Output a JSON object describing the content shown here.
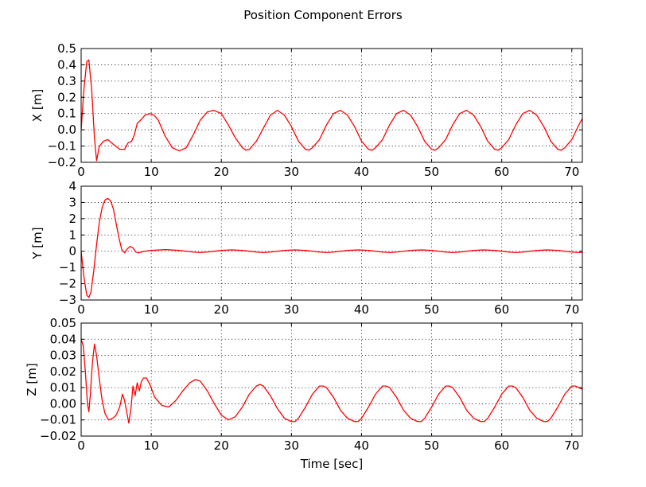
{
  "figure": {
    "title": "Position Component Errors",
    "line_color": "#ff0000",
    "background": "#ffffff"
  },
  "chart_data": [
    {
      "type": "line",
      "id": "x",
      "title": "",
      "xlabel": "",
      "ylabel": "X [m]",
      "xlim": [
        0,
        71.5
      ],
      "ylim": [
        -0.2,
        0.5
      ],
      "xticks": [
        0,
        10,
        20,
        30,
        40,
        50,
        60,
        70
      ],
      "xtick_labels": [
        "0",
        "10",
        "20",
        "30",
        "40",
        "50",
        "60",
        "70"
      ],
      "yticks": [
        -0.2,
        -0.1,
        0.0,
        0.1,
        0.2,
        0.3,
        0.4,
        0.5
      ],
      "ytick_labels": [
        "−0.2",
        "−0.1",
        "0.0",
        "0.1",
        "0.2",
        "0.3",
        "0.4",
        "0.5"
      ],
      "grid": true,
      "series": [
        {
          "color": "#ff0000",
          "x": [
            0,
            0.4,
            0.8,
            1.1,
            1.5,
            1.9,
            2.2,
            2.6,
            3.2,
            3.8,
            4.6,
            5.5,
            6.2,
            6.7,
            7.2,
            7.6,
            8.0,
            8.5,
            9.1,
            9.8,
            10.4,
            11.0,
            12.0,
            13.0,
            14.0,
            15.0,
            16.0,
            17.0,
            18.0,
            18.9,
            20.0,
            21.0,
            22.0,
            23.0,
            23.5,
            24.0,
            25.0,
            26.0,
            27.0,
            28.0,
            29.0,
            30.0,
            31.0,
            32.0,
            32.5,
            33.0,
            34.0,
            35.0,
            36.0,
            37.0,
            38.0,
            39.0,
            40.0,
            41.0,
            41.5,
            42.0,
            43.0,
            44.0,
            45.0,
            46.0,
            47.0,
            48.0,
            49.0,
            50.0,
            50.5,
            51.0,
            52.0,
            53.0,
            54.0,
            55.0,
            56.0,
            57.0,
            58.0,
            59.0,
            59.5,
            60.0,
            61.0,
            62.0,
            63.0,
            64.0,
            65.0,
            66.0,
            67.0,
            68.0,
            68.5,
            69.0,
            70.0,
            71.0,
            71.5
          ],
          "values": [
            0.0,
            0.25,
            0.42,
            0.43,
            0.25,
            -0.05,
            -0.19,
            -0.1,
            -0.07,
            -0.06,
            -0.09,
            -0.12,
            -0.12,
            -0.08,
            -0.07,
            -0.03,
            0.04,
            0.06,
            0.09,
            0.1,
            0.09,
            0.06,
            -0.04,
            -0.11,
            -0.13,
            -0.11,
            -0.03,
            0.06,
            0.11,
            0.12,
            0.1,
            0.03,
            -0.05,
            -0.11,
            -0.125,
            -0.12,
            -0.07,
            0.01,
            0.09,
            0.12,
            0.09,
            0.02,
            -0.07,
            -0.12,
            -0.125,
            -0.11,
            -0.06,
            0.03,
            0.1,
            0.12,
            0.09,
            0.02,
            -0.07,
            -0.12,
            -0.125,
            -0.11,
            -0.06,
            0.03,
            0.1,
            0.12,
            0.09,
            0.02,
            -0.07,
            -0.12,
            -0.125,
            -0.11,
            -0.06,
            0.03,
            0.1,
            0.12,
            0.09,
            0.02,
            -0.07,
            -0.12,
            -0.125,
            -0.11,
            -0.06,
            0.03,
            0.1,
            0.12,
            0.09,
            0.02,
            -0.07,
            -0.12,
            -0.125,
            -0.11,
            -0.06,
            0.03,
            0.07
          ]
        }
      ]
    },
    {
      "type": "line",
      "id": "y",
      "title": "",
      "xlabel": "",
      "ylabel": "Y [m]",
      "xlim": [
        0,
        71.5
      ],
      "ylim": [
        -3,
        4
      ],
      "xticks": [
        0,
        10,
        20,
        30,
        40,
        50,
        60,
        70
      ],
      "xtick_labels": [
        "0",
        "10",
        "20",
        "30",
        "40",
        "50",
        "60",
        "70"
      ],
      "yticks": [
        -3,
        -2,
        -1,
        0,
        1,
        2,
        3,
        4
      ],
      "ytick_labels": [
        "−3",
        "−2",
        "−1",
        "0",
        "1",
        "2",
        "3",
        "4"
      ],
      "grid": true,
      "series": [
        {
          "color": "#ff0000",
          "x": [
            0,
            0.4,
            0.8,
            1.1,
            1.4,
            1.8,
            2.2,
            2.6,
            3.0,
            3.4,
            3.8,
            4.2,
            4.6,
            5.0,
            5.4,
            5.8,
            6.2,
            6.6,
            7.0,
            7.4,
            7.8,
            8.2,
            8.6,
            9.0,
            10.0,
            12.0,
            14.0,
            16.0,
            17.0,
            18.0,
            20.0,
            21.5,
            23.0,
            25.0,
            26.0,
            27.0,
            29.0,
            30.5,
            32.0,
            34.0,
            35.0,
            36.0,
            38.0,
            39.5,
            41.0,
            43.0,
            44.0,
            45.0,
            47.0,
            48.5,
            50.0,
            52.0,
            53.0,
            54.0,
            56.0,
            57.5,
            59.0,
            61.0,
            62.0,
            63.0,
            65.0,
            66.5,
            68.0,
            70.0,
            71.0,
            71.5
          ],
          "values": [
            0.0,
            -1.6,
            -2.7,
            -2.85,
            -2.5,
            -1.2,
            0.4,
            1.8,
            2.7,
            3.15,
            3.25,
            3.1,
            2.6,
            1.7,
            0.8,
            0.1,
            -0.1,
            0.15,
            0.3,
            0.2,
            -0.05,
            -0.1,
            -0.05,
            0.0,
            0.05,
            0.1,
            0.05,
            -0.05,
            -0.08,
            -0.05,
            0.05,
            0.08,
            0.05,
            -0.05,
            -0.08,
            -0.05,
            0.05,
            0.08,
            0.05,
            -0.05,
            -0.08,
            -0.05,
            0.05,
            0.08,
            0.05,
            -0.05,
            -0.08,
            -0.05,
            0.05,
            0.08,
            0.05,
            -0.05,
            -0.08,
            -0.05,
            0.05,
            0.08,
            0.05,
            -0.05,
            -0.08,
            -0.05,
            0.05,
            0.08,
            0.05,
            -0.05,
            -0.08,
            -0.07
          ]
        }
      ]
    },
    {
      "type": "line",
      "id": "z",
      "title": "",
      "xlabel": "Time [sec]",
      "ylabel": "Z [m]",
      "xlim": [
        0,
        71.5
      ],
      "ylim": [
        -0.02,
        0.05
      ],
      "xticks": [
        0,
        10,
        20,
        30,
        40,
        50,
        60,
        70
      ],
      "xtick_labels": [
        "0",
        "10",
        "20",
        "30",
        "40",
        "50",
        "60",
        "70"
      ],
      "yticks": [
        -0.02,
        -0.01,
        0.0,
        0.01,
        0.02,
        0.03,
        0.04,
        0.05
      ],
      "ytick_labels": [
        "−0.02",
        "−0.01",
        "0.00",
        "0.01",
        "0.02",
        "0.03",
        "0.04",
        "0.05"
      ],
      "grid": true,
      "series": [
        {
          "color": "#ff0000",
          "x": [
            0,
            0.3,
            0.6,
            0.9,
            1.1,
            1.3,
            1.6,
            1.9,
            2.2,
            2.6,
            3.0,
            3.4,
            3.9,
            4.5,
            5.0,
            5.5,
            5.9,
            6.2,
            6.5,
            6.8,
            7.1,
            7.4,
            7.7,
            8.0,
            8.3,
            8.6,
            8.9,
            9.3,
            9.8,
            10.5,
            11.5,
            12.5,
            13.5,
            14.5,
            15.5,
            16.3,
            17.0,
            18.0,
            19.0,
            20.0,
            21.0,
            21.5,
            22.0,
            23.0,
            24.0,
            25.0,
            25.5,
            26.0,
            27.0,
            28.0,
            29.0,
            30.0,
            30.5,
            31.0,
            32.0,
            33.0,
            34.0,
            34.5,
            35.0,
            36.0,
            37.0,
            38.0,
            39.0,
            39.5,
            40.0,
            41.0,
            42.0,
            43.0,
            43.5,
            44.0,
            45.0,
            46.0,
            47.0,
            48.0,
            48.5,
            49.0,
            50.0,
            51.0,
            52.0,
            52.5,
            53.0,
            54.0,
            55.0,
            56.0,
            57.0,
            57.5,
            58.0,
            59.0,
            60.0,
            61.0,
            61.5,
            62.0,
            63.0,
            64.0,
            65.0,
            66.0,
            66.5,
            67.0,
            68.0,
            69.0,
            70.0,
            70.5,
            71.0,
            71.5
          ],
          "values": [
            0.04,
            0.036,
            0.02,
            0.0,
            -0.005,
            0.005,
            0.025,
            0.037,
            0.03,
            0.015,
            0.002,
            -0.006,
            -0.01,
            -0.009,
            -0.007,
            -0.002,
            0.006,
            0.002,
            -0.005,
            -0.012,
            -0.003,
            0.011,
            0.005,
            0.013,
            0.008,
            0.014,
            0.016,
            0.016,
            0.012,
            0.004,
            -0.001,
            -0.002,
            0.002,
            0.008,
            0.013,
            0.015,
            0.014,
            0.008,
            0.0,
            -0.007,
            -0.01,
            -0.009,
            -0.008,
            -0.002,
            0.006,
            0.011,
            0.012,
            0.011,
            0.005,
            -0.003,
            -0.009,
            -0.011,
            -0.011,
            -0.009,
            -0.002,
            0.006,
            0.011,
            0.011,
            0.01,
            0.004,
            -0.004,
            -0.009,
            -0.011,
            -0.011,
            -0.009,
            -0.002,
            0.006,
            0.011,
            0.011,
            0.01,
            0.004,
            -0.004,
            -0.009,
            -0.011,
            -0.011,
            -0.009,
            -0.002,
            0.006,
            0.011,
            0.011,
            0.01,
            0.004,
            -0.004,
            -0.009,
            -0.011,
            -0.011,
            -0.009,
            -0.002,
            0.006,
            0.011,
            0.011,
            0.01,
            0.004,
            -0.004,
            -0.009,
            -0.011,
            -0.011,
            -0.009,
            -0.002,
            0.006,
            0.011,
            0.011,
            0.01,
            0.009
          ]
        }
      ]
    }
  ]
}
